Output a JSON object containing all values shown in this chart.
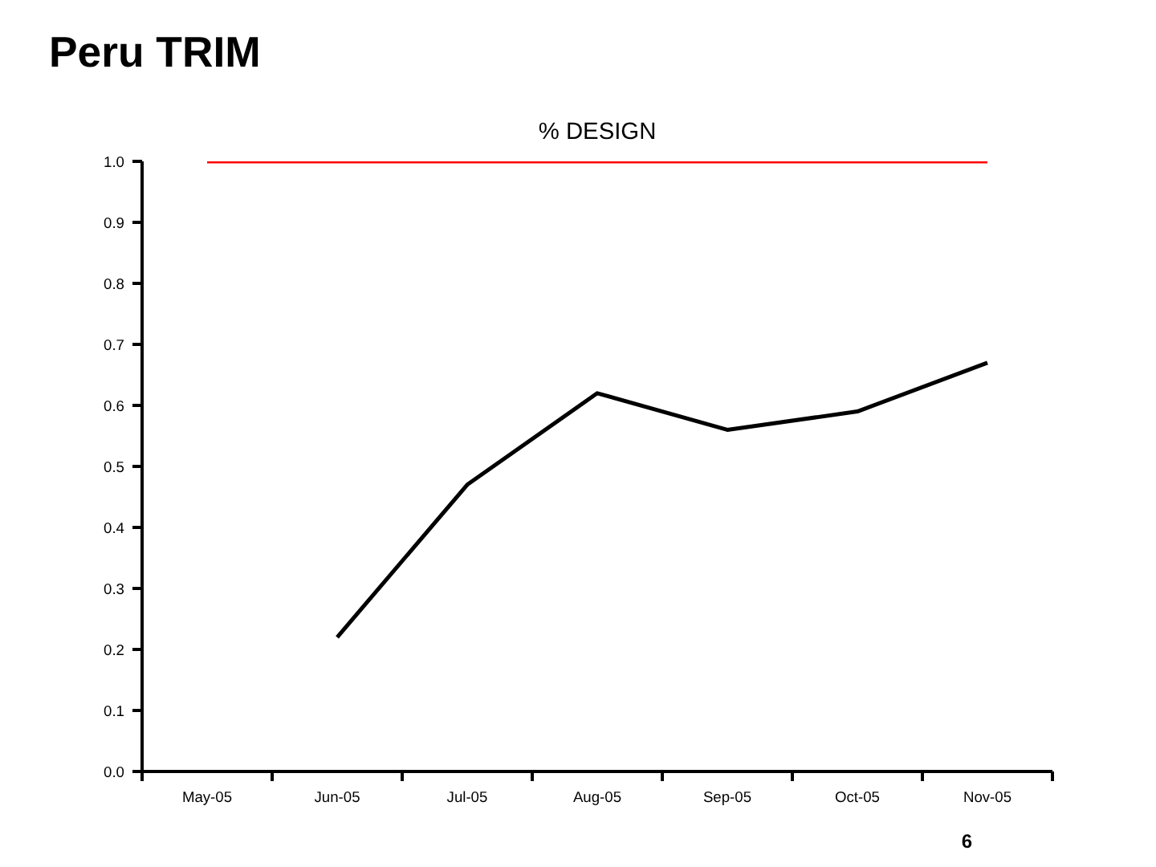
{
  "chart_data": {
    "type": "line",
    "title": "Peru TRIM",
    "subtitle": "% DESIGN",
    "categories": [
      "May-05",
      "Jun-05",
      "Jul-05",
      "Aug-05",
      "Sep-05",
      "Oct-05",
      "Nov-05"
    ],
    "series": [
      {
        "color": "#ff0000",
        "values": [
          1.0,
          1.0,
          1.0,
          1.0,
          1.0,
          1.0,
          1.0
        ]
      },
      {
        "color": "#000000",
        "values": [
          null,
          0.22,
          0.47,
          0.62,
          0.56,
          0.59,
          0.67
        ]
      }
    ],
    "ylim": [
      0,
      1.0
    ],
    "yticks": [
      {
        "value": 0,
        "label": "0.0"
      },
      {
        "value": 0.1,
        "label": "0.1"
      },
      {
        "value": 0.2,
        "label": "0.2"
      },
      {
        "value": 0.3,
        "label": "0.3"
      },
      {
        "value": 0.4,
        "label": "0.4"
      },
      {
        "value": 0.5,
        "label": "0.5"
      },
      {
        "value": 0.6,
        "label": "0.6"
      },
      {
        "value": 0.7,
        "label": "0.7"
      },
      {
        "value": 0.8,
        "label": "0.8"
      },
      {
        "value": 0.9,
        "label": "0.9"
      },
      {
        "value": 1.0,
        "label": "1.0"
      }
    ],
    "grid": false,
    "marker": "none",
    "line_style": "solid",
    "annotations": [
      "6"
    ]
  }
}
